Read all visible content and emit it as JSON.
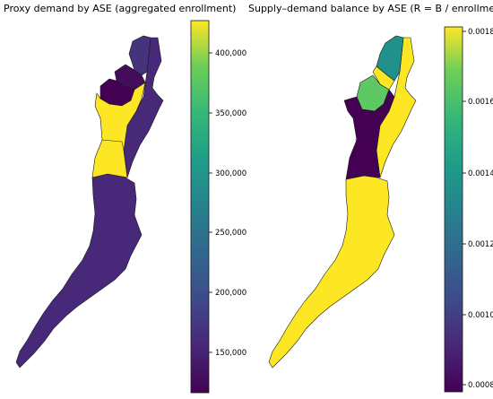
{
  "colors": {
    "viridis_dark": "#440154",
    "viridis_indigo": "#482878",
    "viridis_blue": "#3e4a89",
    "viridis_teal": "#21918c",
    "viridis_green": "#5ec962",
    "viridis_yellow": "#fde725",
    "border": "#1a1a1a"
  },
  "left_panel": {
    "title": "Proxy demand by ASE (aggregated enrollment)",
    "colorbar": {
      "ticks": [
        "400,000",
        "350,000",
        "300,000",
        "250,000",
        "200,000",
        "150,000"
      ],
      "tick_values": [
        400000,
        350000,
        300000,
        250000,
        200000,
        150000
      ],
      "vmin": 115000,
      "vmax": 425000
    },
    "region_values": {
      "north_tip": 170000,
      "north_mid": 140000,
      "north_west": 125000,
      "central_yellow": 425000,
      "east_strip": 165000,
      "south": 165000
    }
  },
  "right_panel": {
    "title": "Supply–demand balance by ASE (R = B / enrollment)",
    "colorbar": {
      "ticks": [
        "0.0018",
        "0.0016",
        "0.0014",
        "0.0012",
        "0.0010",
        "0.0008"
      ],
      "tick_values": [
        0.0018,
        0.0016,
        0.0014,
        0.0012,
        0.001,
        0.0008
      ],
      "vmin": 0.00077,
      "vmax": 0.00182
    },
    "region_values": {
      "north_tip": 0.00145,
      "north_green": 0.00158,
      "west_purple": 0.00079,
      "rest_yellow": 0.00182
    }
  }
}
